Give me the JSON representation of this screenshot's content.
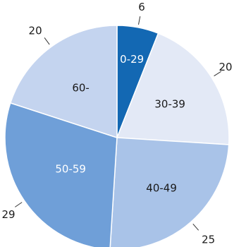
{
  "chart_data": {
    "type": "pie",
    "title": "",
    "start_angle_deg": 0,
    "direction": "clockwise",
    "slices": [
      {
        "label": "0-29",
        "value": 6,
        "value_text": "6",
        "color": "#1368b3",
        "label_color": "#ffffff"
      },
      {
        "label": "30-39",
        "value": 20,
        "value_text": "20",
        "color": "#e3e9f6",
        "label_color": "#1a1a1a"
      },
      {
        "label": "40-49",
        "value": 25,
        "value_text": "25",
        "color": "#a9c3e8",
        "label_color": "#1a1a1a"
      },
      {
        "label": "50-59",
        "value": 29,
        "value_text": "29",
        "color": "#6f9fd8",
        "label_color": "#ffffff"
      },
      {
        "label": "60-",
        "value": 20,
        "value_text": "20",
        "color": "#c4d4ef",
        "label_color": "#1a1a1a"
      }
    ],
    "legend": "none"
  }
}
